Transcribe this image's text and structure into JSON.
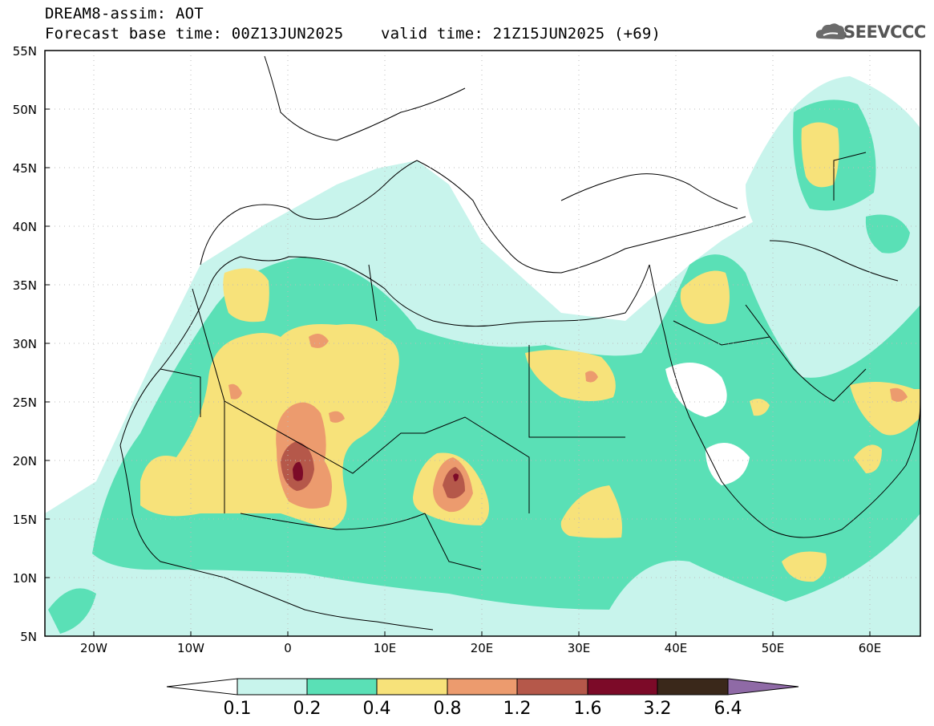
{
  "header": {
    "title": "DREAM8-assim: AOT",
    "base_time_label": "Forecast base time: 00Z13JUN2025",
    "valid_time_label": "valid time: 21Z15JUN2025 (+69)"
  },
  "logo": {
    "text": "SEEVCCC"
  },
  "map": {
    "lat_labels": [
      "55N",
      "50N",
      "45N",
      "40N",
      "35N",
      "30N",
      "25N",
      "20N",
      "15N",
      "10N",
      "5N"
    ],
    "lon_labels": [
      "20W",
      "10W",
      "0",
      "10E",
      "20E",
      "30E",
      "40E",
      "50E",
      "60E"
    ],
    "extent": {
      "lon_min": -25,
      "lon_max": 65,
      "lat_min": 5,
      "lat_max": 55
    }
  },
  "colorbar": {
    "levels": [
      "0.1",
      "0.2",
      "0.4",
      "0.8",
      "1.2",
      "1.6",
      "3.2",
      "6.4"
    ],
    "colors": [
      "#c8f4ec",
      "#5ae0b6",
      "#f7e27a",
      "#ec9b6e",
      "#b5584a",
      "#7c0a28",
      "#3a281a",
      "#8f6aa6"
    ],
    "under_color": "#ffffff"
  },
  "colors": {
    "land_outline": "#000000",
    "grid_dots": "#bbbbbb"
  }
}
